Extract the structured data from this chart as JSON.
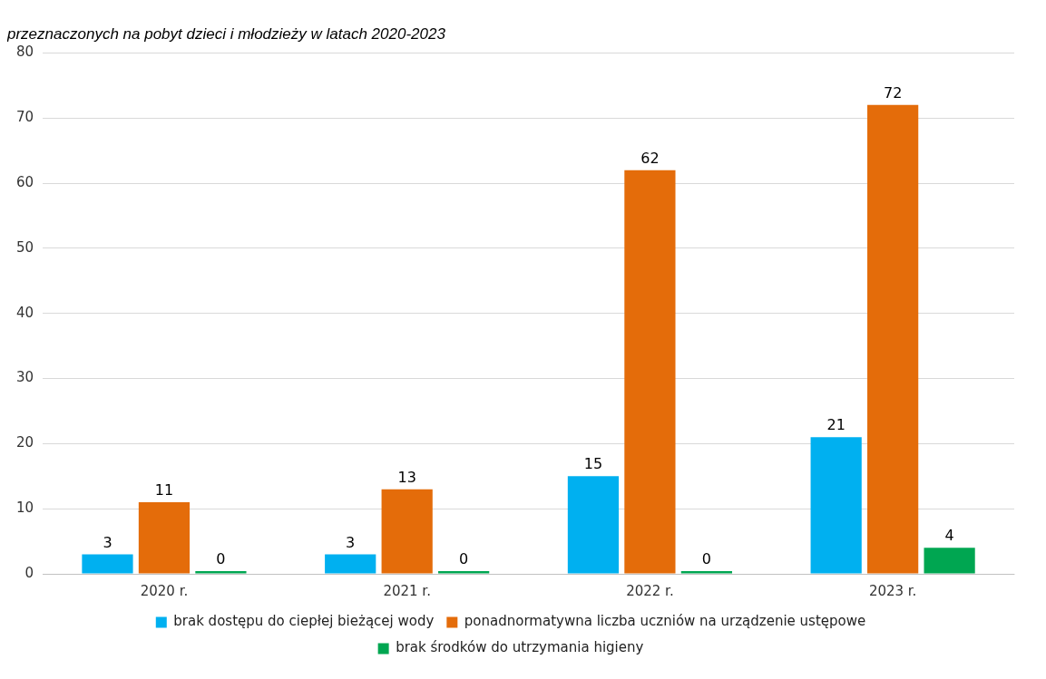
{
  "chart_data": {
    "type": "bar",
    "title": "przeznaczonych na pobyt dzieci i młodzieży w latach 2020-2023",
    "categories": [
      "2020 r.",
      "2021 r.",
      "2022 r.",
      "2023 r."
    ],
    "series": [
      {
        "name": "brak dostępu do ciepłej bieżącej wody",
        "color": "#00b0f0",
        "values": [
          3,
          3,
          15,
          21
        ]
      },
      {
        "name": "ponadnormatywna liczba uczniów na urządzenie ustępowe",
        "color": "#e46c0a",
        "values": [
          11,
          13,
          62,
          72
        ]
      },
      {
        "name": "brak środków do utrzymania higieny",
        "color": "#00a651",
        "values": [
          0,
          0,
          0,
          4
        ]
      }
    ],
    "ylim": [
      0,
      80
    ],
    "yticks": [
      0,
      10,
      20,
      30,
      40,
      50,
      60,
      70,
      80
    ],
    "grid": "y",
    "legend": "bottom",
    "data_labels": true
  }
}
